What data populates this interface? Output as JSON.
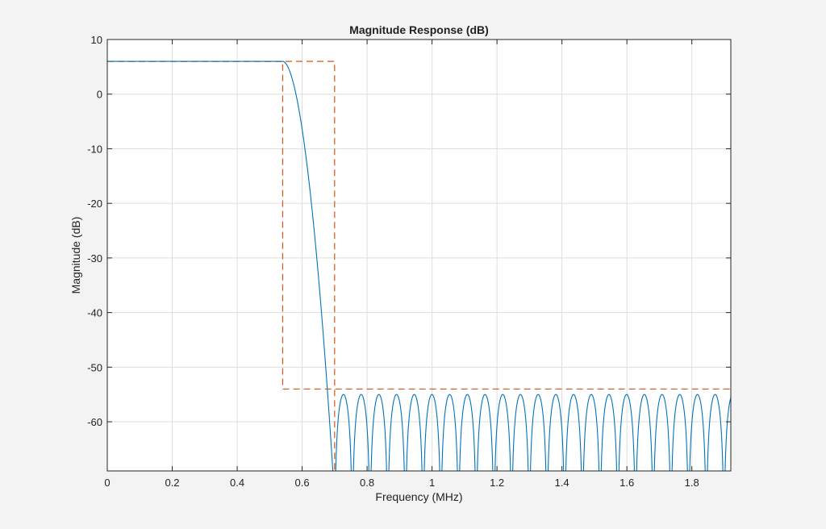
{
  "chart_data": {
    "type": "line",
    "title": "Magnitude Response (dB)",
    "xlabel": "Frequency (MHz)",
    "ylabel": "Magnitude (dB)",
    "xlim": [
      0,
      1.92
    ],
    "ylim": [
      -69,
      10
    ],
    "x_ticks": [
      0,
      0.2,
      0.4,
      0.6,
      0.8,
      1,
      1.2,
      1.4,
      1.6,
      1.8
    ],
    "x_tick_labels": [
      "0",
      "0.2",
      "0.4",
      "0.6",
      "0.8",
      "1",
      "1.2",
      "1.4",
      "1.6",
      "1.8"
    ],
    "y_ticks": [
      10,
      0,
      -10,
      -20,
      -30,
      -40,
      -50,
      -60
    ],
    "y_tick_labels": [
      "10",
      "0",
      "-10",
      "-20",
      "-30",
      "-40",
      "-50",
      "-60"
    ],
    "grid": true,
    "series": [
      {
        "role": "filter-response",
        "color": "#0072bd",
        "style": "solid",
        "passband_level_db": 6,
        "passband_edge_mhz": 0.54,
        "stopband_start_mhz": 0.7,
        "sidelobe_peak_db": -55,
        "sidelobe_period_mhz": 0.0545
      },
      {
        "role": "specification-mask",
        "color": "#d95319",
        "style": "dashed",
        "passband_level_db": 6,
        "passband_edge_mhz": 0.54,
        "stopband_edge_mhz": 0.7,
        "stopband_level_db": -54,
        "stopband_end_mhz": 1.92
      }
    ]
  }
}
